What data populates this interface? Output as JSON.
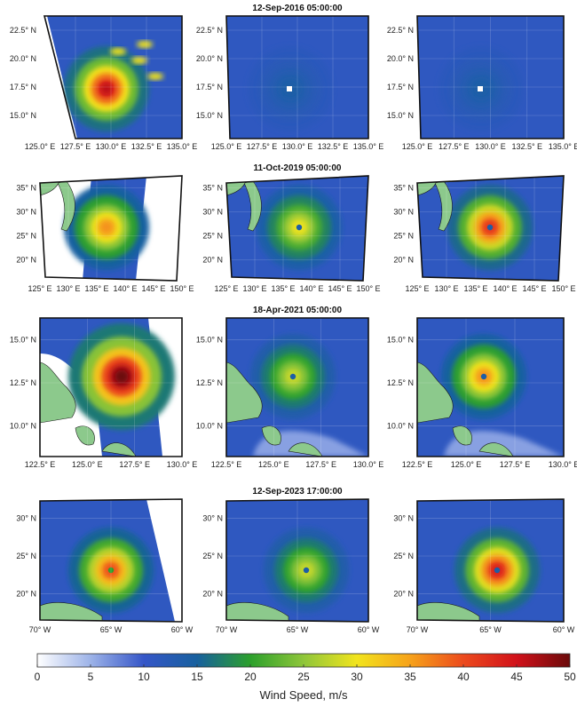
{
  "rows": [
    {
      "title": "12-Sep-2016 05:00:00",
      "lat_ticks": [
        "22.5° N",
        "20.0° N",
        "17.5° N",
        "15.0° N"
      ],
      "lon_ticks": [
        "125.0° E",
        "127.5° E",
        "130.0° E",
        "132.5° E",
        "135.0° E"
      ],
      "lon_ticks_middle": [
        "125.0° E",
        "127.5° E",
        "130.0° E",
        "132.5° E",
        "135.0° E"
      ],
      "peak_wind": [
        46,
        14,
        14
      ]
    },
    {
      "title": "11-Oct-2019 05:00:00",
      "lat_ticks": [
        "35° N",
        "30° N",
        "25° N",
        "20° N"
      ],
      "lon_ticks": [
        "125° E",
        "130° E",
        "135° E",
        "140° E",
        "145° E",
        "150° E"
      ],
      "lon_ticks_middle": [
        "125° E",
        "130° E",
        "135° E",
        "140° E",
        "145° E",
        "150° E"
      ],
      "peak_wind": [
        36,
        30,
        42
      ]
    },
    {
      "title": "18-Apr-2021 05:00:00",
      "lat_ticks": [
        "15.0° N",
        "12.5° N",
        "10.0° N"
      ],
      "lon_ticks": [
        "122.5° E",
        "125.0° E",
        "127.5° E",
        "130.0° E"
      ],
      "lon_ticks_middle": [
        "122.5° E",
        "125.0° E",
        "127.5° E",
        "130.0° E"
      ],
      "peak_wind": [
        50,
        28,
        36
      ]
    },
    {
      "title": "12-Sep-2023 17:00:00",
      "lat_ticks": [
        "30° N",
        "25° N",
        "20° N"
      ],
      "lon_ticks": [
        "70° W",
        "65° W",
        "60° W"
      ],
      "lon_ticks_middle": [
        "70° W",
        "65° W",
        "60° W"
      ],
      "peak_wind": [
        40,
        28,
        44
      ]
    }
  ],
  "colorbar": {
    "label": "Wind Speed, m/s",
    "min": 0,
    "max": 50,
    "ticks": [
      "0",
      "5",
      "10",
      "15",
      "20",
      "25",
      "30",
      "35",
      "40",
      "45",
      "50"
    ]
  },
  "colors": {
    "land": "#8cc98c",
    "frame": "#111111"
  }
}
